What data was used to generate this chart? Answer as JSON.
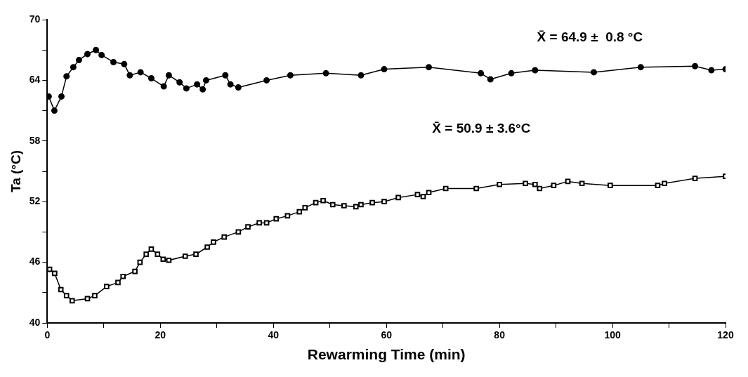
{
  "chart_data": {
    "type": "line",
    "xlabel": "Rewarming Time (min)",
    "ylabel": "Ta (°C)",
    "annotations": [
      "X̄ = 64.9 ±  0.8 °C",
      "X̄ = 50.9 ± 3.6°C"
    ],
    "xlim": [
      0,
      120
    ],
    "xticks": [
      0,
      {
        "value": 10,
        "label": null
      },
      20,
      {
        "value": 30,
        "label": null
      },
      40,
      {
        "value": 50,
        "label": null
      },
      60,
      {
        "value": 70,
        "label": null
      },
      80,
      {
        "value": 90,
        "label": null
      },
      100,
      {
        "value": 110,
        "label": null
      },
      120
    ],
    "ylim": [
      40,
      70
    ],
    "yticks": [
      40,
      {
        "value": 43,
        "label": null
      },
      46,
      {
        "value": 49,
        "label": null
      },
      52,
      {
        "value": 55,
        "label": null
      },
      58,
      {
        "value": 61,
        "label": null
      },
      64,
      {
        "value": 67,
        "label": null
      },
      70
    ],
    "grid": false,
    "legend": false,
    "series": [
      {
        "color": "#000000",
        "marker": "square",
        "x": [
          0.4,
          1.3,
          2.4,
          3.4,
          4.4,
          7.1,
          8.4,
          10.5,
          12.5,
          13.4,
          15.5,
          16.4,
          17.5,
          18.4,
          19.5,
          20.5,
          21.5,
          24.4,
          26.3,
          28.3,
          29.4,
          31.3,
          33.8,
          35.5,
          37.5,
          38.8,
          40.5,
          42.5,
          44.6,
          45.6,
          47.5,
          48.8,
          50.5,
          52.5,
          54.6,
          55.5,
          57.5,
          59.6,
          62.1,
          65.5,
          66.5,
          67.5,
          70.5,
          75.9,
          80,
          84.6,
          86.3,
          87.1,
          89.6,
          92.1,
          94.6,
          99.6,
          108,
          109.2,
          114.6,
          120
        ],
        "values": [
          45.3,
          44.9,
          43.3,
          42.7,
          42.2,
          42.4,
          42.7,
          43.6,
          44.0,
          44.6,
          45.1,
          46.0,
          46.8,
          47.3,
          46.8,
          46.3,
          46.2,
          46.6,
          46.8,
          47.5,
          48.0,
          48.5,
          49.0,
          49.5,
          49.9,
          49.9,
          50.3,
          50.6,
          51.0,
          51.4,
          51.9,
          52.1,
          51.7,
          51.6,
          51.5,
          51.7,
          51.9,
          52.0,
          52.4,
          52.7,
          52.5,
          52.9,
          53.3,
          53.3,
          53.7,
          53.8,
          53.7,
          53.3,
          53.6,
          54.0,
          53.8,
          53.6,
          53.6,
          53.8,
          54.3,
          54.5
        ]
      },
      {
        "color": "#000000",
        "marker": "circle",
        "x": [
          0.25,
          1.25,
          2.5,
          3.4,
          4.6,
          5.6,
          7.1,
          8.6,
          9.6,
          11.7,
          13.6,
          14.6,
          16.5,
          18.4,
          20.6,
          21.5,
          23.4,
          24.6,
          26.5,
          27.5,
          28.1,
          31.5,
          32.4,
          33.8,
          38.8,
          43,
          49.3,
          55.5,
          59.6,
          67.5,
          76.7,
          78.4,
          82.1,
          86.3,
          96.7,
          105,
          114.6,
          117.5,
          120
        ],
        "values": [
          62.4,
          61.0,
          62.4,
          64.4,
          65.3,
          66.0,
          66.6,
          67.0,
          66.5,
          65.8,
          65.6,
          64.5,
          64.8,
          64.2,
          63.4,
          64.5,
          63.8,
          63.2,
          63.6,
          63.1,
          64.0,
          64.5,
          63.6,
          63.3,
          64.0,
          64.5,
          64.7,
          64.5,
          65.1,
          65.3,
          64.7,
          64.1,
          64.7,
          65.0,
          64.8,
          65.3,
          65.4,
          65.0,
          65.1
        ]
      }
    ]
  }
}
